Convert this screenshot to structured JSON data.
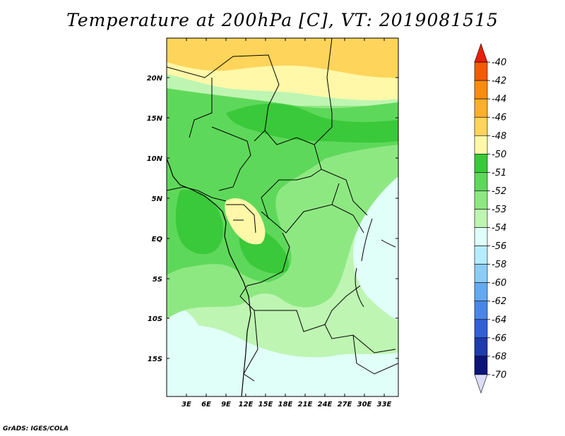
{
  "title": "Temperature at 200hPa [C], VT: 2019081515",
  "credit": "GrADS: IGES/COLA",
  "map": {
    "lat_labels": [
      "20N",
      "15N",
      "10N",
      "5N",
      "EQ",
      "5S",
      "10S",
      "15S"
    ],
    "lon_labels": [
      "3E",
      "6E",
      "9E",
      "12E",
      "15E",
      "18E",
      "21E",
      "24E",
      "27E",
      "30E",
      "33E"
    ]
  },
  "colorbar": {
    "labels": [
      "-40",
      "-42",
      "-44",
      "-46",
      "-48",
      "-50",
      "-51",
      "-52",
      "-53",
      "-54",
      "-56",
      "-58",
      "-60",
      "-62",
      "-64",
      "-66",
      "-68",
      "-70"
    ],
    "colors": [
      "#e8200a",
      "#f55a06",
      "#fa8c0c",
      "#fcb02a",
      "#fed45a",
      "#fff8a8",
      "#3ac93a",
      "#5ed85a",
      "#8ee882",
      "#bef5b2",
      "#e0fff8",
      "#b6ecff",
      "#8ccdf8",
      "#64aaf0",
      "#4a86e6",
      "#3060d4",
      "#1e3caa",
      "#0c1478",
      "#dcdcf8"
    ]
  }
}
